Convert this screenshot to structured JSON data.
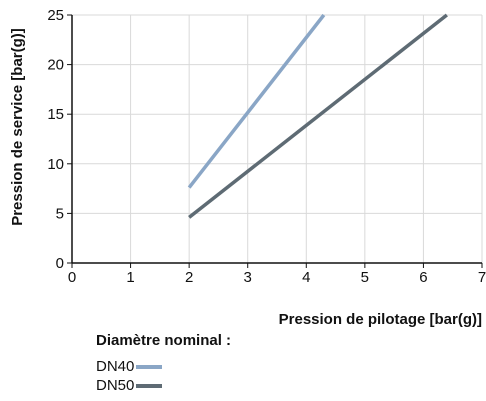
{
  "chart_data": {
    "type": "line",
    "xlabel": "Pression de pilotage [bar(g)]",
    "ylabel": "Pression de service [bar(g)]",
    "xlim": [
      0,
      7
    ],
    "ylim": [
      0,
      25
    ],
    "xticks": [
      0,
      1,
      2,
      3,
      4,
      5,
      6,
      7
    ],
    "yticks": [
      0,
      5,
      10,
      15,
      20,
      25
    ],
    "grid": true,
    "legend_title": "Diamètre nominal :",
    "series": [
      {
        "name": "DN40",
        "color": "#8aa6c6",
        "x": [
          2,
          4.3
        ],
        "y": [
          7.6,
          25
        ]
      },
      {
        "name": "DN50",
        "color": "#5e6b74",
        "x": [
          2,
          6.4
        ],
        "y": [
          4.6,
          25
        ]
      }
    ]
  }
}
